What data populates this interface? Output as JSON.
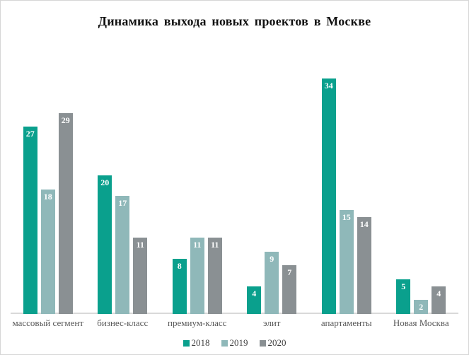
{
  "chart_data": {
    "type": "bar",
    "title": "Динамика выхода новых проектов в Москве",
    "categories": [
      "массовый сегмент",
      "бизнес-класс",
      "премиум-класс",
      "элит",
      "апартаменты",
      "Новая Москва"
    ],
    "series": [
      {
        "name": "2018",
        "color": "#0aa08d",
        "values": [
          27,
          20,
          8,
          4,
          34,
          5
        ]
      },
      {
        "name": "2019",
        "color": "#8fb8b9",
        "values": [
          18,
          17,
          11,
          9,
          15,
          2
        ]
      },
      {
        "name": "2020",
        "color": "#8a9093",
        "values": [
          29,
          11,
          11,
          7,
          14,
          4
        ]
      }
    ],
    "value_labels_shown": true,
    "value_label_color": "#ffffff",
    "grid": false,
    "y_axis_visible": false,
    "ylim": [
      0,
      38.5
    ],
    "legend_position": "bottom",
    "legend_labels": [
      "2018",
      "2019",
      "2020"
    ],
    "axis_line_color": "#d9d9d9",
    "category_label_color": "#595959",
    "legend_text_color": "#404040"
  }
}
